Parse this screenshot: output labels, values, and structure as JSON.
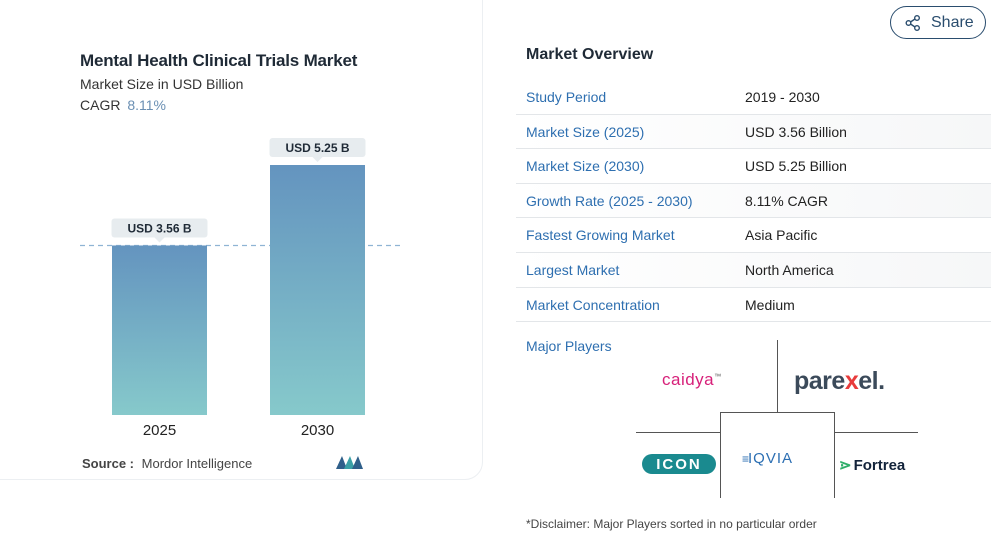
{
  "chart": {
    "title": "Mental Health Clinical Trials Market",
    "subtitle": "Market Size in USD Billion",
    "cagr_label": "CAGR",
    "cagr_value": "8.11%",
    "source_label": "Source :",
    "source_value": "Mordor Intelligence",
    "source_logo_icon": "mordor-intelligence-logo"
  },
  "chart_data": {
    "type": "bar",
    "categories": [
      "2025",
      "2030"
    ],
    "values": [
      3.56,
      5.25
    ],
    "value_labels": [
      "USD 3.56 B",
      "USD 5.25 B"
    ],
    "title": "Mental Health Clinical Trials Market",
    "subtitle": "Market Size in USD Billion",
    "xlabel": "",
    "ylabel": "",
    "ylim": [
      0,
      5.25
    ],
    "grid": false,
    "reference_line": 3.56,
    "colors": {
      "bar_top": "#6494bf",
      "bar_bottom": "#86c9cb",
      "label_bg": "#e7ecef",
      "reference_line": "#8fb4d4"
    }
  },
  "overview": {
    "title": "Market Overview",
    "rows": [
      {
        "key": "Study Period",
        "value": "2019 - 2030"
      },
      {
        "key": "Market Size (2025)",
        "value": "USD 3.56 Billion"
      },
      {
        "key": "Market Size (2030)",
        "value": "USD 5.25 Billion"
      },
      {
        "key": "Growth Rate (2025 - 2030)",
        "value": "8.11% CAGR"
      },
      {
        "key": "Fastest Growing Market",
        "value": "Asia Pacific"
      },
      {
        "key": "Largest Market",
        "value": "North America"
      },
      {
        "key": "Market Concentration",
        "value": "Medium"
      }
    ],
    "key_color": "#2e6fb0"
  },
  "players": {
    "title": "Major Players",
    "logos": {
      "caidya": "caidya",
      "caidya_mark": "™",
      "parexel_a": "pare",
      "parexel_x": "x",
      "parexel_b": "el.",
      "icon": "ICON",
      "iqvia": "IQVIA",
      "fortrea": "Fortrea"
    }
  },
  "disclaimer": "*Disclaimer: Major Players sorted in no particular order",
  "share": {
    "label": "Share",
    "icon": "share-icon"
  }
}
